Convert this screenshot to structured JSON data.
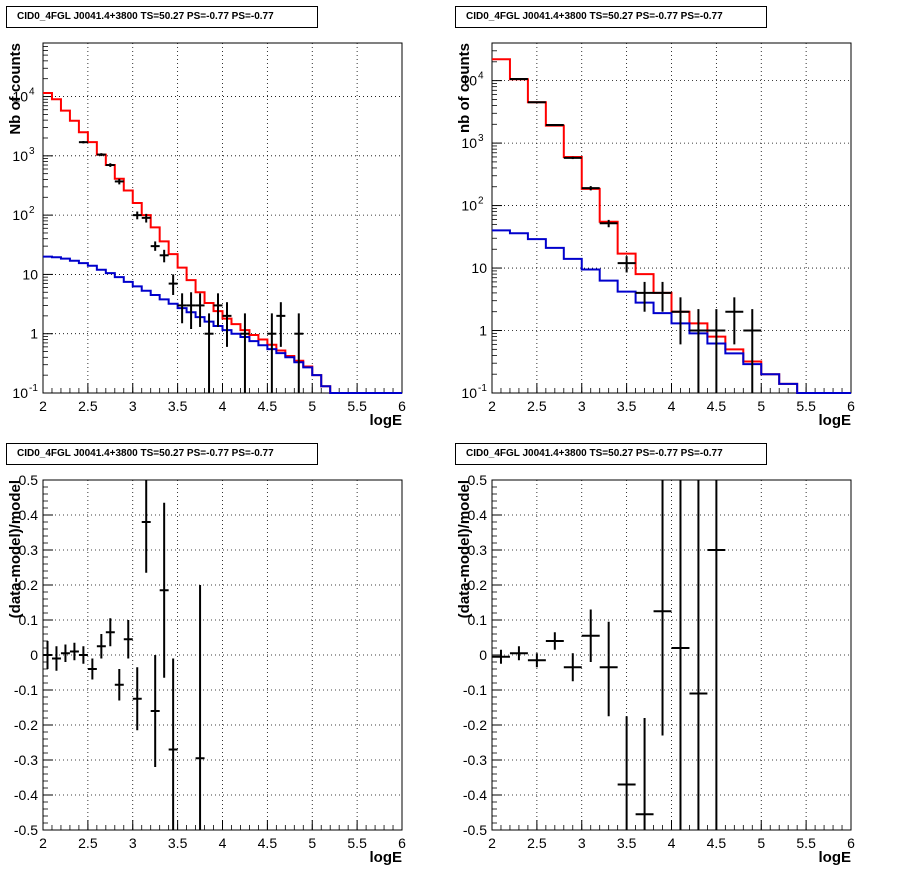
{
  "chart_data": [
    {
      "type": "line",
      "scale": "log",
      "title": "CID0_4FGL J0041.4+3800 TS=50.27 PS=-0.77 PS=-0.77",
      "xlabel": "logE",
      "ylabel": "Nb of counts",
      "xlim": [
        2,
        6
      ],
      "ylim": [
        0.1,
        80000
      ],
      "grid": true,
      "xticks": [
        "2",
        "2.5",
        "3",
        "3.5",
        "4",
        "4.5",
        "5",
        "5.5",
        "6"
      ],
      "yticks": [
        {
          "v": 0.1,
          "l": "10"
        },
        {
          "v": 1,
          "l": "1"
        },
        {
          "v": 10,
          "l": "10"
        },
        {
          "v": 100,
          "l": "10"
        },
        {
          "v": 1000,
          "l": "10"
        },
        {
          "v": 10000,
          "l": "10"
        }
      ],
      "yticks_exp": [
        "-1",
        "",
        "",
        "2",
        "3",
        "4"
      ],
      "bin_edges": [
        2.0,
        2.1,
        2.2,
        2.3,
        2.4,
        2.5,
        2.6,
        2.7,
        2.8,
        2.9,
        3.0,
        3.1,
        3.2,
        3.3,
        3.4,
        3.5,
        3.6,
        3.7,
        3.8,
        3.9,
        4.0,
        4.1,
        4.2,
        4.3,
        4.4,
        4.5,
        4.6,
        4.7,
        4.8,
        4.9,
        5.0,
        5.1,
        5.2,
        5.3,
        5.4,
        5.5,
        5.6,
        5.7,
        5.8,
        5.9,
        6.0
      ],
      "series": [
        {
          "role": "model-total",
          "color": "#ff0000",
          "values": [
            11500,
            9000,
            5800,
            3900,
            2500,
            1700,
            1050,
            700,
            410,
            260,
            160,
            100,
            62,
            36,
            22,
            13,
            8,
            5,
            3.3,
            2.4,
            1.8,
            1.45,
            1.15,
            0.95,
            0.8,
            0.65,
            0.52,
            0.42,
            0.35,
            0.28,
            0.2,
            0.13,
            0.1,
            0.1,
            0.1,
            0.1,
            0.1,
            0.1,
            0.1,
            0.1
          ]
        },
        {
          "role": "model-source",
          "color": "#0000cc",
          "values": [
            20,
            19.5,
            18.5,
            17,
            15.5,
            14,
            12,
            10.5,
            9,
            7.5,
            6.3,
            5.3,
            4.5,
            3.8,
            3.2,
            2.7,
            2.3,
            1.9,
            1.6,
            1.35,
            1.15,
            1.0,
            0.88,
            0.75,
            0.64,
            0.55,
            0.47,
            0.4,
            0.33,
            0.27,
            0.2,
            0.13,
            0.1,
            0.1,
            0.1,
            0.1,
            0.1,
            0.1,
            0.1,
            0.1
          ]
        }
      ],
      "points": [
        {
          "x": 2.45,
          "y": 1700,
          "dx": 0.05,
          "lo": 1620,
          "hi": 1780
        },
        {
          "x": 2.65,
          "y": 1050,
          "dx": 0.05,
          "lo": 990,
          "hi": 1110
        },
        {
          "x": 2.75,
          "y": 700,
          "dx": 0.05,
          "lo": 650,
          "hi": 750
        },
        {
          "x": 2.85,
          "y": 370,
          "dx": 0.05,
          "lo": 330,
          "hi": 410
        },
        {
          "x": 3.05,
          "y": 100,
          "dx": 0.05,
          "lo": 85,
          "hi": 115
        },
        {
          "x": 3.15,
          "y": 90,
          "dx": 0.05,
          "lo": 75,
          "hi": 105
        },
        {
          "x": 3.25,
          "y": 30,
          "dx": 0.05,
          "lo": 25,
          "hi": 36
        },
        {
          "x": 3.35,
          "y": 21,
          "dx": 0.05,
          "lo": 16,
          "hi": 26
        },
        {
          "x": 3.45,
          "y": 7,
          "dx": 0.05,
          "lo": 4.5,
          "hi": 10
        },
        {
          "x": 3.55,
          "y": 3,
          "dx": 0.05,
          "lo": 1.5,
          "hi": 4.8
        },
        {
          "x": 3.65,
          "y": 3,
          "dx": 0.05,
          "lo": 1.2,
          "hi": 5
        },
        {
          "x": 3.75,
          "y": 3,
          "dx": 0.05,
          "lo": 1.3,
          "hi": 4.8
        },
        {
          "x": 3.85,
          "y": 1,
          "dx": 0.05,
          "lo": 0.1,
          "hi": 2.2
        },
        {
          "x": 3.95,
          "y": 3,
          "dx": 0.05,
          "lo": 1.3,
          "hi": 4.8
        },
        {
          "x": 4.05,
          "y": 2,
          "dx": 0.05,
          "lo": 0.6,
          "hi": 3.4
        },
        {
          "x": 4.25,
          "y": 1,
          "dx": 0.05,
          "lo": 0.1,
          "hi": 2.2
        },
        {
          "x": 4.55,
          "y": 1,
          "dx": 0.05,
          "lo": 0.1,
          "hi": 2.2
        },
        {
          "x": 4.65,
          "y": 2,
          "dx": 0.05,
          "lo": 0.6,
          "hi": 3.4
        },
        {
          "x": 4.85,
          "y": 1,
          "dx": 0.05,
          "lo": 0.1,
          "hi": 2.2
        }
      ]
    },
    {
      "type": "line",
      "scale": "log",
      "title": "CID0_4FGL J0041.4+3800 TS=50.27 PS=-0.77 PS=-0.77",
      "xlabel": "logE",
      "ylabel": "nb of counts",
      "xlim": [
        2,
        6
      ],
      "ylim": [
        0.1,
        40000
      ],
      "grid": true,
      "xticks": [
        "2",
        "2.5",
        "3",
        "3.5",
        "4",
        "4.5",
        "5",
        "5.5",
        "6"
      ],
      "yticks": [
        {
          "v": 0.1,
          "l": "10"
        },
        {
          "v": 1,
          "l": "1"
        },
        {
          "v": 10,
          "l": "10"
        },
        {
          "v": 100,
          "l": "10"
        },
        {
          "v": 1000,
          "l": "10"
        },
        {
          "v": 10000,
          "l": "10"
        }
      ],
      "yticks_exp": [
        "-1",
        "",
        "",
        "2",
        "3",
        "4"
      ],
      "bin_edges": [
        2.0,
        2.2,
        2.4,
        2.6,
        2.8,
        3.0,
        3.2,
        3.4,
        3.6,
        3.8,
        4.0,
        4.2,
        4.4,
        4.6,
        4.8,
        5.0,
        5.2,
        5.4,
        5.6,
        5.8,
        6.0
      ],
      "series": [
        {
          "role": "model-total",
          "color": "#ff0000",
          "values": [
            22000,
            10500,
            4500,
            1900,
            600,
            185,
            55,
            17,
            8,
            4,
            2,
            1.3,
            0.8,
            0.5,
            0.32,
            0.2,
            0.14,
            0.1,
            0.1,
            0.1
          ]
        },
        {
          "role": "model-source",
          "color": "#0000cc",
          "values": [
            40,
            36,
            29,
            21,
            14,
            9.5,
            6.3,
            4.2,
            2.8,
            1.9,
            1.3,
            0.9,
            0.62,
            0.43,
            0.29,
            0.2,
            0.14,
            0.1,
            0.1,
            0.1
          ]
        }
      ],
      "points": [
        {
          "x": 2.3,
          "y": 10600,
          "dx": 0.1,
          "lo": 10400,
          "hi": 10800
        },
        {
          "x": 2.5,
          "y": 4500,
          "dx": 0.1,
          "lo": 4400,
          "hi": 4600
        },
        {
          "x": 2.7,
          "y": 1950,
          "dx": 0.1,
          "lo": 1880,
          "hi": 2020
        },
        {
          "x": 2.9,
          "y": 580,
          "dx": 0.1,
          "lo": 555,
          "hi": 605
        },
        {
          "x": 3.1,
          "y": 190,
          "dx": 0.1,
          "lo": 175,
          "hi": 205
        },
        {
          "x": 3.3,
          "y": 52,
          "dx": 0.1,
          "lo": 45,
          "hi": 59
        },
        {
          "x": 3.5,
          "y": 12,
          "dx": 0.1,
          "lo": 8.5,
          "hi": 15.5
        },
        {
          "x": 3.7,
          "y": 4,
          "dx": 0.1,
          "lo": 2,
          "hi": 6
        },
        {
          "x": 3.9,
          "y": 4,
          "dx": 0.1,
          "lo": 2,
          "hi": 6
        },
        {
          "x": 4.1,
          "y": 2,
          "dx": 0.1,
          "lo": 0.6,
          "hi": 3.4
        },
        {
          "x": 4.3,
          "y": 1,
          "dx": 0.1,
          "lo": 0.1,
          "hi": 2.2
        },
        {
          "x": 4.5,
          "y": 1,
          "dx": 0.1,
          "lo": 0.1,
          "hi": 2.2
        },
        {
          "x": 4.7,
          "y": 2,
          "dx": 0.1,
          "lo": 0.6,
          "hi": 3.4
        },
        {
          "x": 4.9,
          "y": 1,
          "dx": 0.1,
          "lo": 0.1,
          "hi": 2.2
        }
      ]
    },
    {
      "type": "scatter",
      "scale": "linear",
      "title": "CID0_4FGL J0041.4+3800 TS=50.27 PS=-0.77 PS=-0.77",
      "xlabel": "logE",
      "ylabel": "(data-model)/model",
      "xlim": [
        2,
        6
      ],
      "ylim": [
        -0.5,
        0.5
      ],
      "grid": true,
      "xticks": [
        "2",
        "2.5",
        "3",
        "3.5",
        "4",
        "4.5",
        "5",
        "5.5",
        "6"
      ],
      "yticks": [
        "-0.5",
        "-0.4",
        "-0.3",
        "-0.2",
        "-0.1",
        "0",
        "0.1",
        "0.2",
        "0.3",
        "0.4",
        "0.5"
      ],
      "points": [
        {
          "x": 2.05,
          "y": 0.0,
          "dx": 0.05,
          "lo": -0.04,
          "hi": 0.04
        },
        {
          "x": 2.15,
          "y": -0.01,
          "dx": 0.05,
          "lo": -0.045,
          "hi": 0.025
        },
        {
          "x": 2.25,
          "y": 0.005,
          "dx": 0.05,
          "lo": -0.02,
          "hi": 0.03
        },
        {
          "x": 2.35,
          "y": 0.01,
          "dx": 0.05,
          "lo": -0.015,
          "hi": 0.035
        },
        {
          "x": 2.45,
          "y": 0.0,
          "dx": 0.05,
          "lo": -0.025,
          "hi": 0.025
        },
        {
          "x": 2.55,
          "y": -0.04,
          "dx": 0.05,
          "lo": -0.07,
          "hi": -0.01
        },
        {
          "x": 2.65,
          "y": 0.025,
          "dx": 0.05,
          "lo": -0.01,
          "hi": 0.06
        },
        {
          "x": 2.75,
          "y": 0.065,
          "dx": 0.05,
          "lo": 0.025,
          "hi": 0.105
        },
        {
          "x": 2.85,
          "y": -0.085,
          "dx": 0.05,
          "lo": -0.13,
          "hi": -0.04
        },
        {
          "x": 2.95,
          "y": 0.045,
          "dx": 0.05,
          "lo": -0.01,
          "hi": 0.1
        },
        {
          "x": 3.05,
          "y": -0.125,
          "dx": 0.05,
          "lo": -0.215,
          "hi": -0.035
        },
        {
          "x": 3.15,
          "y": 0.38,
          "dx": 0.05,
          "lo": 0.235,
          "hi": 0.5
        },
        {
          "x": 3.25,
          "y": -0.16,
          "dx": 0.05,
          "lo": -0.32,
          "hi": 0.0
        },
        {
          "x": 3.35,
          "y": 0.185,
          "dx": 0.05,
          "lo": -0.065,
          "hi": 0.435
        },
        {
          "x": 3.45,
          "y": -0.27,
          "dx": 0.05,
          "lo": -0.5,
          "hi": -0.01
        },
        {
          "x": 3.75,
          "y": -0.295,
          "dx": 0.05,
          "lo": -0.5,
          "hi": 0.2
        }
      ]
    },
    {
      "type": "scatter",
      "scale": "linear",
      "title": "CID0_4FGL J0041.4+3800 TS=50.27 PS=-0.77 PS=-0.77",
      "xlabel": "logE",
      "ylabel": "(data-model)/model",
      "xlim": [
        2,
        6
      ],
      "ylim": [
        -0.5,
        0.5
      ],
      "grid": true,
      "xticks": [
        "2",
        "2.5",
        "3",
        "3.5",
        "4",
        "4.5",
        "5",
        "5.5",
        "6"
      ],
      "yticks": [
        "-0.5",
        "-0.4",
        "-0.3",
        "-0.2",
        "-0.1",
        "0",
        "0.1",
        "0.2",
        "0.3",
        "0.4",
        "0.5"
      ],
      "points": [
        {
          "x": 2.1,
          "y": -0.005,
          "dx": 0.1,
          "lo": -0.025,
          "hi": 0.015
        },
        {
          "x": 2.3,
          "y": 0.005,
          "dx": 0.1,
          "lo": -0.015,
          "hi": 0.025
        },
        {
          "x": 2.5,
          "y": -0.015,
          "dx": 0.1,
          "lo": -0.035,
          "hi": 0.005
        },
        {
          "x": 2.7,
          "y": 0.04,
          "dx": 0.1,
          "lo": 0.015,
          "hi": 0.065
        },
        {
          "x": 2.9,
          "y": -0.035,
          "dx": 0.1,
          "lo": -0.075,
          "hi": 0.005
        },
        {
          "x": 3.1,
          "y": 0.055,
          "dx": 0.1,
          "lo": -0.02,
          "hi": 0.13
        },
        {
          "x": 3.3,
          "y": -0.035,
          "dx": 0.1,
          "lo": -0.175,
          "hi": 0.095
        },
        {
          "x": 3.5,
          "y": -0.37,
          "dx": 0.1,
          "lo": -0.5,
          "hi": -0.175
        },
        {
          "x": 3.7,
          "y": -0.455,
          "dx": 0.1,
          "lo": -0.5,
          "hi": -0.18
        },
        {
          "x": 3.9,
          "y": 0.125,
          "dx": 0.1,
          "lo": -0.23,
          "hi": 0.5
        },
        {
          "x": 4.1,
          "y": 0.02,
          "dx": 0.1,
          "lo": -0.5,
          "hi": 0.5
        },
        {
          "x": 4.3,
          "y": -0.11,
          "dx": 0.1,
          "lo": -0.5,
          "hi": 0.5
        },
        {
          "x": 4.5,
          "y": 0.3,
          "dx": 0.1,
          "lo": -0.5,
          "hi": 0.5
        }
      ]
    }
  ]
}
